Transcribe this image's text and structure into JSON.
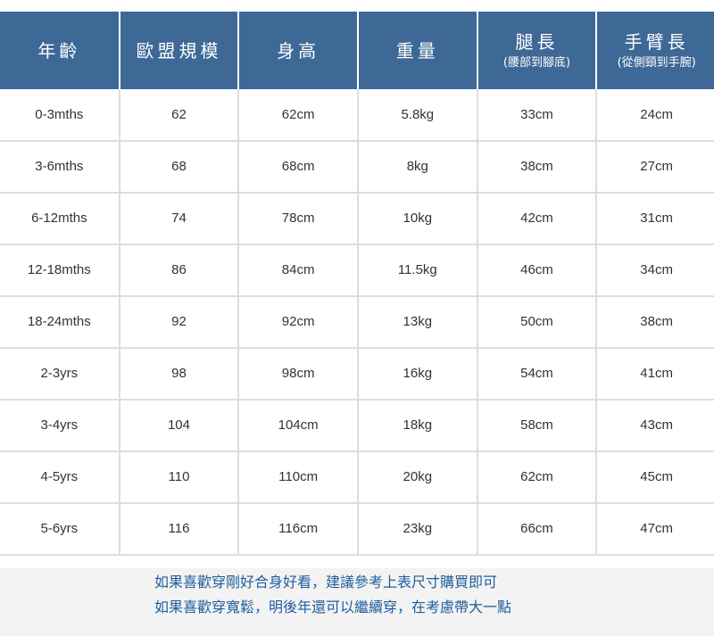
{
  "table": {
    "headers": [
      {
        "main": "年齡",
        "sub": ""
      },
      {
        "main": "歐盟規模",
        "sub": ""
      },
      {
        "main": "身高",
        "sub": ""
      },
      {
        "main": "重量",
        "sub": ""
      },
      {
        "main": "腿長",
        "sub": "(腰部到腳底)"
      },
      {
        "main": "手臂長",
        "sub": "(從側頸到手腕)"
      }
    ],
    "rows": [
      [
        "0-3mths",
        "62",
        "62cm",
        "5.8kg",
        "33cm",
        "24cm"
      ],
      [
        "3-6mths",
        "68",
        "68cm",
        "8kg",
        "38cm",
        "27cm"
      ],
      [
        "6-12mths",
        "74",
        "78cm",
        "10kg",
        "42cm",
        "31cm"
      ],
      [
        "12-18mths",
        "86",
        "84cm",
        "11.5kg",
        "46cm",
        "34cm"
      ],
      [
        "18-24mths",
        "92",
        "92cm",
        "13kg",
        "50cm",
        "38cm"
      ],
      [
        "2-3yrs",
        "98",
        "98cm",
        "16kg",
        "54cm",
        "41cm"
      ],
      [
        "3-4yrs",
        "104",
        "104cm",
        "18kg",
        "58cm",
        "43cm"
      ],
      [
        "4-5yrs",
        "110",
        "110cm",
        "20kg",
        "62cm",
        "45cm"
      ],
      [
        "5-6yrs",
        "116",
        "116cm",
        "23kg",
        "66cm",
        "47cm"
      ]
    ]
  },
  "footer": {
    "line1": "如果喜歡穿剛好合身好看，建議參考上表尺寸購買即可",
    "line2": "如果喜歡穿寬鬆，明後年還可以繼續穿，在考慮帶大一點"
  },
  "colors": {
    "header_bg": "#3e6895",
    "footer_text": "#1f5d9c"
  }
}
